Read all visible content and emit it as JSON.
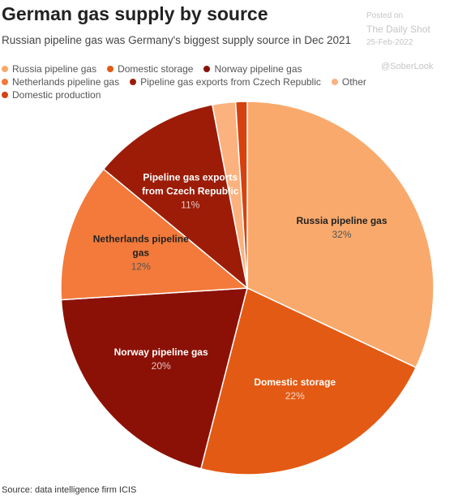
{
  "chart_data": {
    "type": "pie",
    "title": "German gas supply by source",
    "subtitle": "Russian pipeline gas was Germany's biggest supply source in Dec 2021",
    "categories": [
      "Russia pipeline gas",
      "Domestic storage",
      "Norway pipeline gas",
      "Netherlands pipeline gas",
      "Pipeline gas exports from Czech Republic",
      "Other",
      "Domestic production"
    ],
    "values": [
      32,
      22,
      20,
      12,
      11,
      2,
      1
    ],
    "value_labels": [
      "32%",
      "22%",
      "20%",
      "12%",
      "11%",
      null,
      null
    ],
    "colors": [
      "#f9a96b",
      "#e35a14",
      "#8b1106",
      "#f37a3a",
      "#9c1c08",
      "#fbb27e",
      "#d6420f"
    ],
    "source": "Source: data intelligence firm ICIS",
    "watermark": [
      "Posted on",
      "The Daily Shot",
      "25-Feb-2022",
      "@SoberLook"
    ]
  }
}
